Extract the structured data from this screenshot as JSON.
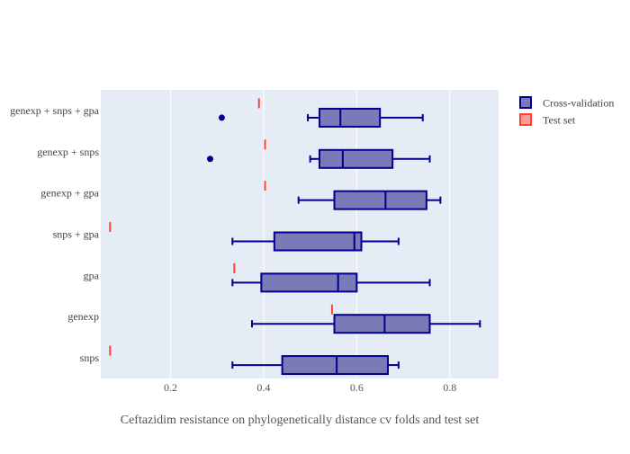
{
  "chart_data": {
    "type": "box",
    "orientation": "horizontal",
    "title": "",
    "xlabel": "Ceftazidim resistance on phylogenetically distance cv folds and test set",
    "ylabel": "",
    "xlim": [
      0.05,
      0.905
    ],
    "xticks": [
      0.2,
      0.4,
      0.6,
      0.8
    ],
    "grid": true,
    "legend_position": "top-right",
    "categories": [
      "snps",
      "genexp",
      "gpa",
      "snps + gpa",
      "genexp + gpa",
      "genexp + snps",
      "genexp + snps + gpa"
    ],
    "series": [
      {
        "name": "Cross-validation",
        "color": "#00008b",
        "fill": "#7a7ab8",
        "boxes": [
          {
            "category": "snps",
            "min": 0.333,
            "q1": 0.44,
            "median": 0.557,
            "q3": 0.667,
            "max": 0.69,
            "outliers": []
          },
          {
            "category": "genexp",
            "min": 0.375,
            "q1": 0.552,
            "median": 0.66,
            "q3": 0.757,
            "max": 0.865,
            "outliers": []
          },
          {
            "category": "gpa",
            "min": 0.333,
            "q1": 0.395,
            "median": 0.56,
            "q3": 0.6,
            "max": 0.757,
            "outliers": []
          },
          {
            "category": "snps + gpa",
            "min": 0.333,
            "q1": 0.423,
            "median": 0.595,
            "q3": 0.61,
            "max": 0.69,
            "outliers": []
          },
          {
            "category": "genexp + gpa",
            "min": 0.475,
            "q1": 0.552,
            "median": 0.662,
            "q3": 0.75,
            "max": 0.78,
            "outliers": []
          },
          {
            "category": "genexp + snps",
            "min": 0.5,
            "q1": 0.52,
            "median": 0.57,
            "q3": 0.677,
            "max": 0.757,
            "outliers": [
              0.285
            ]
          },
          {
            "category": "genexp + snps + gpa",
            "min": 0.495,
            "q1": 0.52,
            "median": 0.565,
            "q3": 0.65,
            "max": 0.742,
            "outliers": [
              0.31
            ]
          }
        ]
      },
      {
        "name": "Test set",
        "color": "#ff4136",
        "fill": "#ff9a95",
        "points": [
          {
            "category": "snps",
            "value": 0.07
          },
          {
            "category": "genexp",
            "value": 0.547
          },
          {
            "category": "gpa",
            "value": 0.337
          },
          {
            "category": "snps + gpa",
            "value": 0.07
          },
          {
            "category": "genexp + gpa",
            "value": 0.403
          },
          {
            "category": "genexp + snps",
            "value": 0.403
          },
          {
            "category": "genexp + snps + gpa",
            "value": 0.39
          }
        ]
      }
    ]
  }
}
